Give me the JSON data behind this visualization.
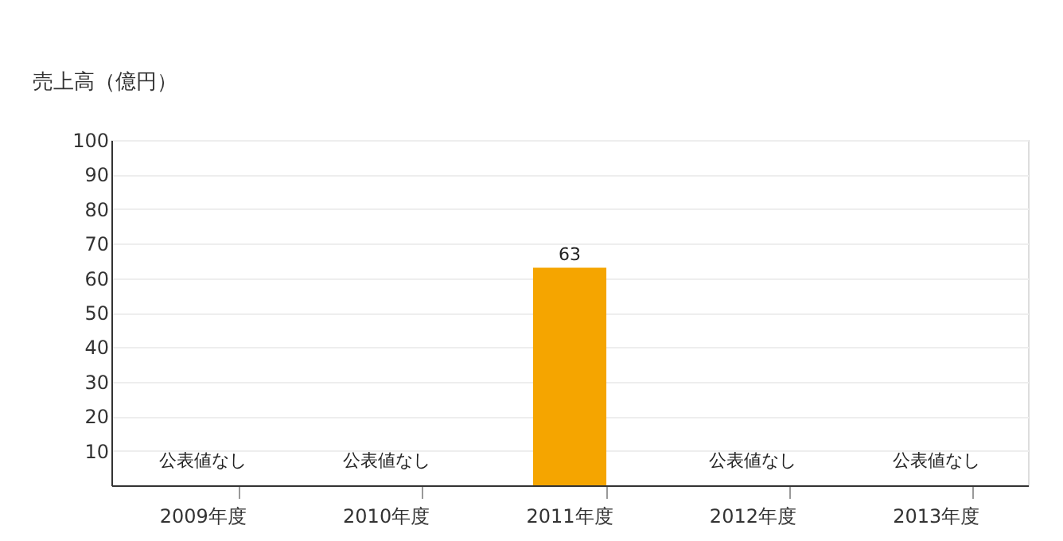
{
  "chart_data": {
    "type": "bar",
    "ylabel": "売上高（億円）",
    "categories": [
      "2009年度",
      "2010年度",
      "2011年度",
      "2012年度",
      "2013年度"
    ],
    "values": [
      null,
      null,
      63,
      null,
      null
    ],
    "color": "#f5a500",
    "value_labels": [
      "公表値なし",
      "公表値なし",
      "63",
      "公表値なし",
      "公表値なし"
    ],
    "ylim": [
      0,
      100
    ],
    "yticks": [
      10,
      20,
      30,
      40,
      50,
      60,
      70,
      80,
      90,
      100
    ],
    "grid": "y",
    "legend": false
  }
}
